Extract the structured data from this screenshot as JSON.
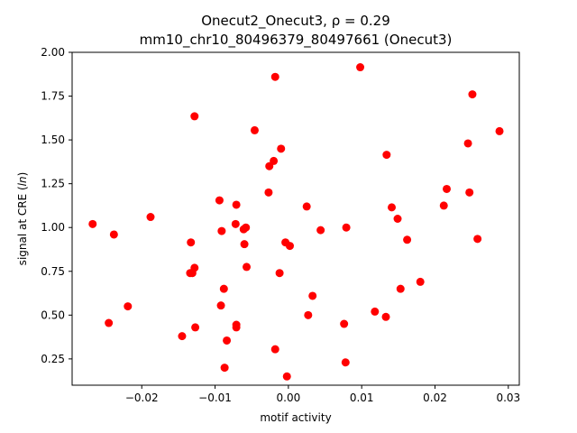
{
  "chart_data": {
    "type": "scatter",
    "title": "Onecut2_Onecut3, ρ = 0.29",
    "subtitle": "mm10_chr10_80496379_80497661 (Onecut3)",
    "xlabel": "motif activity",
    "ylabel": "signal at CRE (ln)",
    "xlim": [
      -0.0295,
      0.0315
    ],
    "ylim": [
      0.1,
      2.0
    ],
    "xticks": [
      -0.02,
      -0.01,
      0.0,
      0.01,
      0.02,
      0.03
    ],
    "xtick_labels": [
      "−0.02",
      "−0.01",
      "0.00",
      "0.01",
      "0.02",
      "0.03"
    ],
    "yticks": [
      0.25,
      0.5,
      0.75,
      1.0,
      1.25,
      1.5,
      1.75,
      2.0
    ],
    "ytick_labels": [
      "0.25",
      "0.50",
      "0.75",
      "1.00",
      "1.25",
      "1.50",
      "1.75",
      "2.00"
    ],
    "grid": false,
    "marker_color": "#ff0000",
    "points": [
      {
        "x": -0.0267,
        "y": 1.02
      },
      {
        "x": -0.0245,
        "y": 0.455
      },
      {
        "x": -0.0238,
        "y": 0.96
      },
      {
        "x": -0.0219,
        "y": 0.55
      },
      {
        "x": -0.0188,
        "y": 1.06
      },
      {
        "x": -0.0145,
        "y": 0.38
      },
      {
        "x": -0.0134,
        "y": 0.74
      },
      {
        "x": -0.0133,
        "y": 0.915
      },
      {
        "x": -0.0131,
        "y": 0.74
      },
      {
        "x": -0.0128,
        "y": 1.635
      },
      {
        "x": -0.0128,
        "y": 0.77
      },
      {
        "x": -0.0127,
        "y": 0.43
      },
      {
        "x": -0.0094,
        "y": 1.155
      },
      {
        "x": -0.0092,
        "y": 0.555
      },
      {
        "x": -0.0091,
        "y": 0.98
      },
      {
        "x": -0.0088,
        "y": 0.65
      },
      {
        "x": -0.0087,
        "y": 0.2
      },
      {
        "x": -0.0084,
        "y": 0.355
      },
      {
        "x": -0.0072,
        "y": 1.02
      },
      {
        "x": -0.0071,
        "y": 1.13
      },
      {
        "x": -0.0071,
        "y": 0.445
      },
      {
        "x": -0.0071,
        "y": 0.43
      },
      {
        "x": -0.0061,
        "y": 0.99
      },
      {
        "x": -0.006,
        "y": 0.905
      },
      {
        "x": -0.0058,
        "y": 1.0
      },
      {
        "x": -0.0057,
        "y": 0.775
      },
      {
        "x": -0.0046,
        "y": 1.555
      },
      {
        "x": -0.0027,
        "y": 1.2
      },
      {
        "x": -0.0026,
        "y": 1.35
      },
      {
        "x": -0.002,
        "y": 1.38
      },
      {
        "x": -0.0018,
        "y": 1.86
      },
      {
        "x": -0.0018,
        "y": 0.305
      },
      {
        "x": -0.0012,
        "y": 0.74
      },
      {
        "x": -0.001,
        "y": 1.45
      },
      {
        "x": -0.0004,
        "y": 0.915
      },
      {
        "x": -0.0002,
        "y": 0.15
      },
      {
        "x": 0.0002,
        "y": 0.895
      },
      {
        "x": 0.0025,
        "y": 1.12
      },
      {
        "x": 0.0027,
        "y": 0.5
      },
      {
        "x": 0.0033,
        "y": 0.61
      },
      {
        "x": 0.0044,
        "y": 0.985
      },
      {
        "x": 0.0076,
        "y": 0.45
      },
      {
        "x": 0.0078,
        "y": 0.23
      },
      {
        "x": 0.0079,
        "y": 1.0
      },
      {
        "x": 0.0098,
        "y": 1.915
      },
      {
        "x": 0.0118,
        "y": 0.52
      },
      {
        "x": 0.0133,
        "y": 0.49
      },
      {
        "x": 0.0134,
        "y": 1.415
      },
      {
        "x": 0.0141,
        "y": 1.115
      },
      {
        "x": 0.0149,
        "y": 1.05
      },
      {
        "x": 0.0153,
        "y": 0.65
      },
      {
        "x": 0.0162,
        "y": 0.93
      },
      {
        "x": 0.018,
        "y": 0.69
      },
      {
        "x": 0.0212,
        "y": 1.125
      },
      {
        "x": 0.0216,
        "y": 1.22
      },
      {
        "x": 0.0245,
        "y": 1.48
      },
      {
        "x": 0.0247,
        "y": 1.2
      },
      {
        "x": 0.0251,
        "y": 1.76
      },
      {
        "x": 0.0258,
        "y": 0.935
      },
      {
        "x": 0.0288,
        "y": 1.55
      }
    ]
  }
}
